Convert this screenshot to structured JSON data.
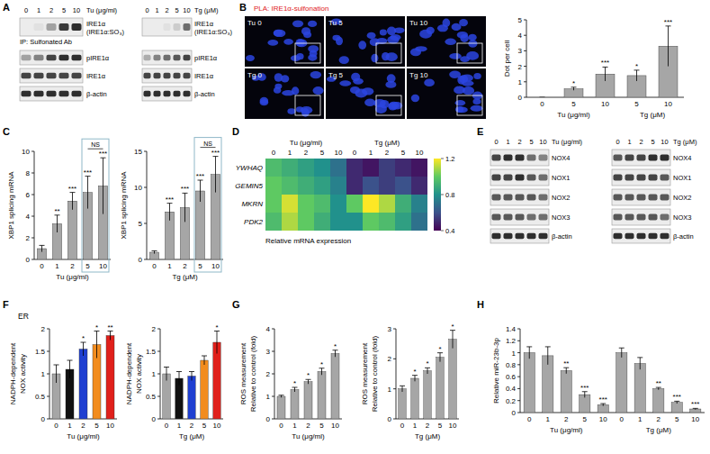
{
  "blots": [
    {
      "panel": "A",
      "header": "Tu (μg/ml)",
      "lanes": [
        "0",
        "1",
        "2",
        "5",
        "10"
      ],
      "rows": [
        {
          "label": "IRE1α",
          "sublabel": "(IRE1α:SO₃)",
          "note": "IP: Sulfonated Ab",
          "bands": [
            0,
            0.05,
            0.35,
            0.85,
            0.9
          ]
        },
        {
          "label": "pIRE1α",
          "bands": [
            0.35,
            0.5,
            0.8,
            0.9,
            0.9
          ]
        },
        {
          "label": "IRE1α",
          "bands": [
            0.8,
            0.8,
            0.8,
            0.8,
            0.8
          ]
        },
        {
          "label": "β-actin",
          "bands": [
            0.9,
            0.9,
            0.9,
            0.9,
            0.9
          ]
        }
      ]
    },
    {
      "header": "Tg (μM)",
      "lanes": [
        "0",
        "1",
        "2",
        "5",
        "10"
      ],
      "rows": [
        {
          "label": "IRE1α",
          "sublabel": "(IRE1α:SO₃)",
          "bands": [
            0,
            0,
            0.05,
            0.15,
            0.6
          ]
        },
        {
          "label": "pIRE1α",
          "bands": [
            0.3,
            0.5,
            0.6,
            0.7,
            0.8
          ]
        },
        {
          "label": "IRE1α",
          "bands": [
            0.8,
            0.8,
            0.8,
            0.8,
            0.8
          ]
        },
        {
          "label": "β-actin",
          "bands": [
            0.9,
            0.9,
            0.9,
            0.9,
            0.9
          ]
        }
      ]
    },
    {
      "panel": "E",
      "header": "Tu (μg/ml)",
      "lanes": [
        "0",
        "1",
        "2",
        "5",
        "10"
      ],
      "rows": [
        {
          "label": "NOX4",
          "bands": [
            0.8,
            0.9,
            0.9,
            0.6,
            0.5
          ]
        },
        {
          "label": "NOX1",
          "bands": [
            0.8,
            0.8,
            0.9,
            0.7,
            0.6
          ]
        },
        {
          "label": "NOX2",
          "bands": [
            0.7,
            0.7,
            0.7,
            0.7,
            0.6
          ]
        },
        {
          "label": "NOX3",
          "bands": [
            0.7,
            0.7,
            0.7,
            0.6,
            0.6
          ]
        },
        {
          "label": "β-actin",
          "bands": [
            0.9,
            0.9,
            0.9,
            0.9,
            0.9
          ]
        }
      ]
    },
    {
      "header": "Tg (μM)",
      "lanes": [
        "0",
        "1",
        "2",
        "5",
        "10"
      ],
      "rows": [
        {
          "label": "NOX4",
          "bands": [
            0.7,
            0.8,
            0.8,
            0.9,
            0.9
          ]
        },
        {
          "label": "NOX1",
          "bands": [
            0.8,
            0.8,
            0.8,
            0.8,
            0.7
          ]
        },
        {
          "label": "NOX2",
          "bands": [
            0.7,
            0.7,
            0.7,
            0.7,
            0.7
          ]
        },
        {
          "label": "NOX3",
          "bands": [
            0.7,
            0.7,
            0.7,
            0.7,
            0.6
          ]
        },
        {
          "label": "β-actin",
          "bands": [
            0.9,
            0.9,
            0.9,
            0.9,
            0.9
          ]
        }
      ]
    }
  ],
  "microscopy": {
    "panel": "B",
    "title": "PLA: IRE1α-sulfonation",
    "images": [
      "Tu 0",
      "Tu 5",
      "Tu 10",
      "Tg 0",
      "Tg 5",
      "Tg 10"
    ]
  },
  "chart_data": [
    {
      "type": "bar",
      "categories": [
        "0",
        "5",
        "10",
        "5",
        "10"
      ],
      "x_groups": [
        {
          "label": "Tu (μg/ml)",
          "count": 3
        },
        {
          "label": "Tg (μM)",
          "count": 2
        }
      ],
      "values": [
        0,
        0.55,
        1.5,
        1.4,
        3.3
      ],
      "errors": [
        0,
        0.1,
        0.45,
        0.35,
        1.3
      ],
      "annotations": [
        null,
        "*",
        "***",
        "*",
        "***"
      ],
      "ylabel": "Dot per cell",
      "ylim": [
        0,
        5
      ],
      "yticks": [
        0,
        1,
        2,
        3,
        4,
        5
      ],
      "color": "#a6a6a6"
    },
    {
      "type": "bar",
      "panel": "C",
      "categories": [
        "0",
        "1",
        "2",
        "5",
        "10"
      ],
      "xlabel": "Tu (μg/ml)",
      "values": [
        1,
        3.3,
        5.4,
        6.2,
        6.8
      ],
      "errors": [
        0.3,
        0.8,
        0.8,
        1.5,
        2.6
      ],
      "annotations": [
        null,
        "**",
        "***",
        "***",
        "***"
      ],
      "brackets": [
        {
          "from": 3,
          "to": 4,
          "label": "NS"
        }
      ],
      "ylabel": "XBP1 splicing mRNA",
      "ylim": [
        0,
        10
      ],
      "yticks": [
        0,
        2,
        4,
        6,
        8,
        10
      ],
      "color": "#a6a6a6"
    },
    {
      "type": "bar",
      "categories": [
        "0",
        "1",
        "2",
        "5",
        "10"
      ],
      "xlabel": "Tg (μM)",
      "values": [
        1,
        6.6,
        7.2,
        9.5,
        11.8
      ],
      "errors": [
        0.2,
        1.2,
        2.0,
        1.5,
        2.5
      ],
      "annotations": [
        null,
        "***",
        "***",
        "***",
        "***"
      ],
      "brackets": [
        {
          "from": 3,
          "to": 4,
          "label": "NS"
        }
      ],
      "ylabel": "XBP1 splicing mRNA",
      "ylim": [
        0,
        15
      ],
      "yticks": [
        0,
        5,
        10,
        15
      ],
      "color": "#a6a6a6"
    },
    {
      "type": "heatmap",
      "panel": "D",
      "rows": [
        "YWHAQ",
        "GEMIN5",
        "MKRN",
        "PDK2"
      ],
      "columns": [
        "0",
        "1",
        "2",
        "5",
        "10",
        "0",
        "1",
        "2",
        "5",
        "10"
      ],
      "x_groups": [
        {
          "label": "Tu (μg/ml)",
          "count": 5
        },
        {
          "label": "Tg (μM)",
          "count": 5
        }
      ],
      "values": [
        [
          0.95,
          0.9,
          0.85,
          0.8,
          0.7,
          0.5,
          0.45,
          0.55,
          0.5,
          0.45
        ],
        [
          1.0,
          0.95,
          0.9,
          0.85,
          0.75,
          0.5,
          0.6,
          0.55,
          0.6,
          0.5
        ],
        [
          1.0,
          1.15,
          1.0,
          0.95,
          0.8,
          1.0,
          1.2,
          1.1,
          0.9,
          0.75
        ],
        [
          0.95,
          1.1,
          1.0,
          0.9,
          0.8,
          0.8,
          1.0,
          0.95,
          0.85,
          0.7
        ]
      ],
      "colorbar": {
        "range": [
          0.4,
          1.2
        ],
        "ticks": [
          0.4,
          0.8,
          1.2
        ],
        "label": "Relative mRNA expression"
      }
    },
    {
      "type": "bar",
      "panel": "F",
      "subtitle": "ER",
      "categories": [
        "0",
        "1",
        "2",
        "5",
        "10"
      ],
      "xlabel": "Tu (μg/ml)",
      "values": [
        1,
        1.1,
        1.55,
        1.65,
        1.85
      ],
      "errors": [
        0.2,
        0.2,
        0.15,
        0.3,
        0.1
      ],
      "annotations": [
        null,
        null,
        "*",
        "*",
        "**"
      ],
      "colors": [
        "#a6a6a6",
        "#111111",
        "#1f3fd1",
        "#f28c1e",
        "#e0201b"
      ],
      "ylabel": [
        "NADPH-dependent",
        "NOX activity"
      ],
      "ylim": [
        0,
        2
      ],
      "yticks": [
        0,
        0.5,
        1,
        1.5,
        2
      ]
    },
    {
      "type": "bar",
      "categories": [
        "0",
        "1",
        "2",
        "5",
        "10"
      ],
      "xlabel": "Tg (μM)",
      "values": [
        1,
        0.9,
        0.95,
        1.3,
        1.7
      ],
      "errors": [
        0.15,
        0.15,
        0.1,
        0.1,
        0.25
      ],
      "annotations": [
        null,
        null,
        null,
        null,
        "*"
      ],
      "colors": [
        "#a6a6a6",
        "#111111",
        "#1f3fd1",
        "#f28c1e",
        "#e0201b"
      ],
      "ylabel": [
        "NADPH-dependent",
        "NOX activity"
      ],
      "ylim": [
        0,
        2
      ],
      "yticks": [
        0,
        0.5,
        1,
        1.5,
        2
      ]
    },
    {
      "type": "bar",
      "panel": "G",
      "categories": [
        "0",
        "1",
        "2",
        "5",
        "10"
      ],
      "xlabel": "Tu (μg/ml)",
      "values": [
        1,
        1.3,
        1.65,
        2.1,
        2.9
      ],
      "errors": [
        0.05,
        0.1,
        0.1,
        0.15,
        0.15
      ],
      "annotations": [
        null,
        "*",
        "*",
        "*",
        "*"
      ],
      "ylabel": [
        "ROS measurement",
        "Relative to control (fold)"
      ],
      "ylim": [
        0,
        4
      ],
      "yticks": [
        0,
        1,
        2,
        3,
        4
      ],
      "color": "#a6a6a6"
    },
    {
      "type": "bar",
      "categories": [
        "0",
        "1",
        "2",
        "5",
        "10"
      ],
      "xlabel": "Tg (μM)",
      "values": [
        1,
        1.35,
        1.6,
        2.05,
        2.65
      ],
      "errors": [
        0.1,
        0.1,
        0.1,
        0.15,
        0.3
      ],
      "annotations": [
        null,
        "*",
        "*",
        "*",
        "*"
      ],
      "ylabel": [
        "ROS measurement",
        "Relative to control (fold)"
      ],
      "ylim": [
        0,
        3
      ],
      "yticks": [
        0,
        1,
        2,
        3
      ],
      "color": "#a6a6a6"
    },
    {
      "type": "bar",
      "panel": "H",
      "categories": [
        "0",
        "1",
        "2",
        "5",
        "10",
        "0",
        "1",
        "2",
        "5",
        "10"
      ],
      "x_groups": [
        {
          "label": "Tu (μg/ml)",
          "count": 5
        },
        {
          "label": "Tg (μM)",
          "count": 5
        }
      ],
      "values": [
        1,
        0.95,
        0.7,
        0.3,
        0.13,
        1,
        0.82,
        0.4,
        0.17,
        0.06
      ],
      "errors": [
        0.1,
        0.15,
        0.05,
        0.05,
        0.02,
        0.08,
        0.1,
        0.02,
        0.02,
        0.01
      ],
      "annotations": [
        null,
        null,
        "**",
        "***",
        "***",
        null,
        null,
        "**",
        "***",
        "***"
      ],
      "ylabel": "Relative miR-23b-3p",
      "ylim": [
        0,
        1.4
      ],
      "yticks": [
        0,
        0.2,
        0.4,
        0.6,
        0.8,
        1,
        1.2,
        1.4
      ],
      "color": "#a6a6a6"
    }
  ]
}
